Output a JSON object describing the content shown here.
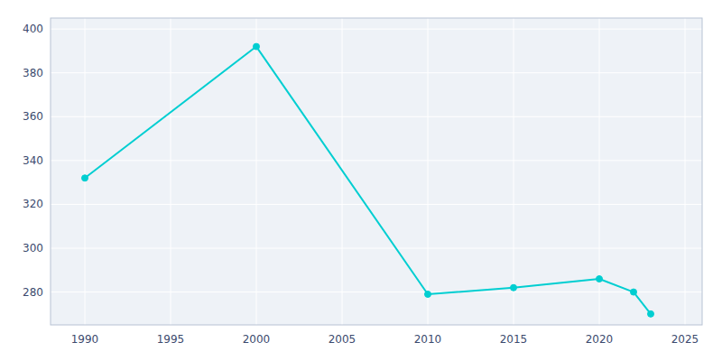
{
  "chart_data": {
    "type": "line",
    "x": [
      1990,
      2000,
      2010,
      2015,
      2020,
      2022,
      2023
    ],
    "values": [
      332,
      392,
      279,
      282,
      286,
      280,
      270
    ],
    "color": "#00CED1",
    "marker": "circle",
    "xlim": [
      1988,
      2026
    ],
    "ylim": [
      265,
      405
    ],
    "xticks": [
      1990,
      1995,
      2000,
      2005,
      2010,
      2015,
      2020,
      2025
    ],
    "yticks": [
      280,
      300,
      320,
      340,
      360,
      380,
      400
    ],
    "grid": true
  }
}
